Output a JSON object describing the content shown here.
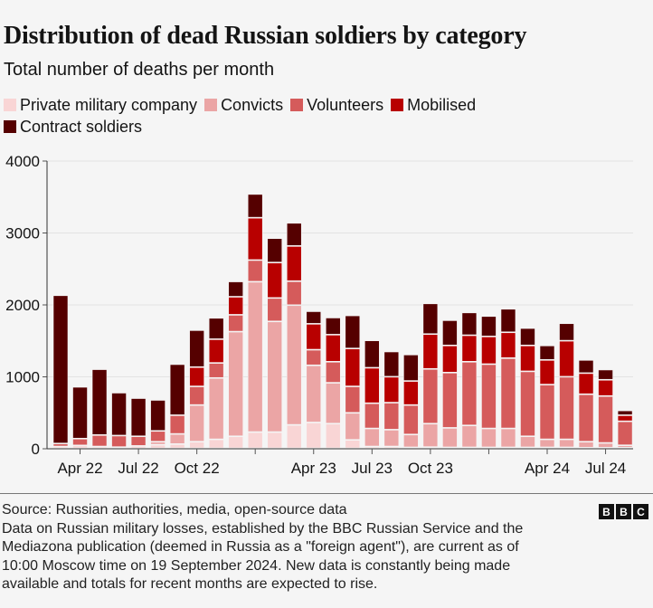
{
  "header": {
    "title": "Distribution of dead Russian soldiers by category",
    "subtitle": "Total number of deaths per month"
  },
  "footer": {
    "source": "Source: Russian authorities, media, open-source data",
    "note_lines": [
      "Data on Russian military losses, established by the BBC Russian Service and the",
      "Mediazona publication (deemed in Russia as a \"foreign agent\"), are current as of",
      "10:00 Moscow time on 19 September 2024. New data is constantly being made",
      "available and totals for recent months are expected to rise."
    ],
    "logo": [
      "B",
      "B",
      "C"
    ]
  },
  "chart_data": {
    "type": "bar",
    "stacked": true,
    "title": "Distribution of dead Russian soldiers by category",
    "subtitle": "Total number of deaths per month",
    "xlabel": "",
    "ylabel": "",
    "ylim": [
      0,
      4000
    ],
    "yticks": [
      0,
      1000,
      2000,
      3000,
      4000
    ],
    "grid": true,
    "legend_position": "top",
    "categories": [
      "Mar 22",
      "Apr 22",
      "May 22",
      "Jun 22",
      "Jul 22",
      "Aug 22",
      "Sep 22",
      "Oct 22",
      "Nov 22",
      "Dec 22",
      "Jan 23",
      "Feb 23",
      "Mar 23",
      "Apr 23",
      "May 23",
      "Jun 23",
      "Jul 23",
      "Aug 23",
      "Sep 23",
      "Oct 23",
      "Nov 23",
      "Dec 23",
      "Jan 24",
      "Feb 24",
      "Mar 24",
      "Apr 24",
      "May 24",
      "Jun 24",
      "Jul 24",
      "Aug 24"
    ],
    "xtick_labels": [
      {
        "category": "Apr 22",
        "label": "Apr 22"
      },
      {
        "category": "Jul 22",
        "label": "Jul 22"
      },
      {
        "category": "Oct 22",
        "label": "Oct 22"
      },
      {
        "category": "Jan 23",
        "label": ""
      },
      {
        "category": "Apr 23",
        "label": "Apr 23"
      },
      {
        "category": "Jul 23",
        "label": "Jul 23"
      },
      {
        "category": "Oct 23",
        "label": "Oct 23"
      },
      {
        "category": "Jan 24",
        "label": ""
      },
      {
        "category": "Apr 24",
        "label": "Apr 24"
      },
      {
        "category": "Jul 24",
        "label": "Jul 24"
      }
    ],
    "series": [
      {
        "name": "Private military company",
        "color": "#f9d5d5",
        "values": [
          25,
          40,
          25,
          17,
          33,
          50,
          59,
          92,
          125,
          167,
          226,
          226,
          326,
          359,
          343,
          117,
          25,
          25,
          13,
          17,
          13,
          13,
          13,
          13,
          13,
          13,
          13,
          8,
          8,
          8
        ]
      },
      {
        "name": "Convicts",
        "color": "#eba5a5",
        "values": [
          0,
          0,
          0,
          0,
          0,
          42,
          141,
          510,
          853,
          1455,
          2090,
          1538,
          1664,
          795,
          568,
          376,
          251,
          234,
          179,
          326,
          271,
          305,
          263,
          263,
          154,
          112,
          112,
          84,
          67,
          34
        ]
      },
      {
        "name": "Volunteers",
        "color": "#d55b5b",
        "values": [
          42,
          95,
          160,
          160,
          134,
          150,
          260,
          259,
          209,
          234,
          301,
          326,
          334,
          217,
          293,
          368,
          351,
          376,
          410,
          761,
          769,
          886,
          894,
          978,
          903,
          761,
          870,
          660,
          652,
          334
        ]
      },
      {
        "name": "Mobilised",
        "color": "#b80000",
        "values": [
          0,
          0,
          0,
          0,
          0,
          0,
          0,
          268,
          330,
          251,
          589,
          493,
          489,
          360,
          376,
          527,
          493,
          360,
          334,
          484,
          377,
          368,
          385,
          359,
          360,
          343,
          501,
          293,
          226,
          84
        ]
      },
      {
        "name": "Contract soldiers",
        "color": "#550000",
        "values": [
          2061,
          720,
          915,
          597,
          531,
          431,
          710,
          514,
          297,
          213,
          330,
          339,
          322,
          175,
          238,
          460,
          381,
          351,
          368,
          427,
          351,
          317,
          284,
          327,
          242,
          201,
          243,
          184,
          142,
          67
        ]
      }
    ]
  }
}
